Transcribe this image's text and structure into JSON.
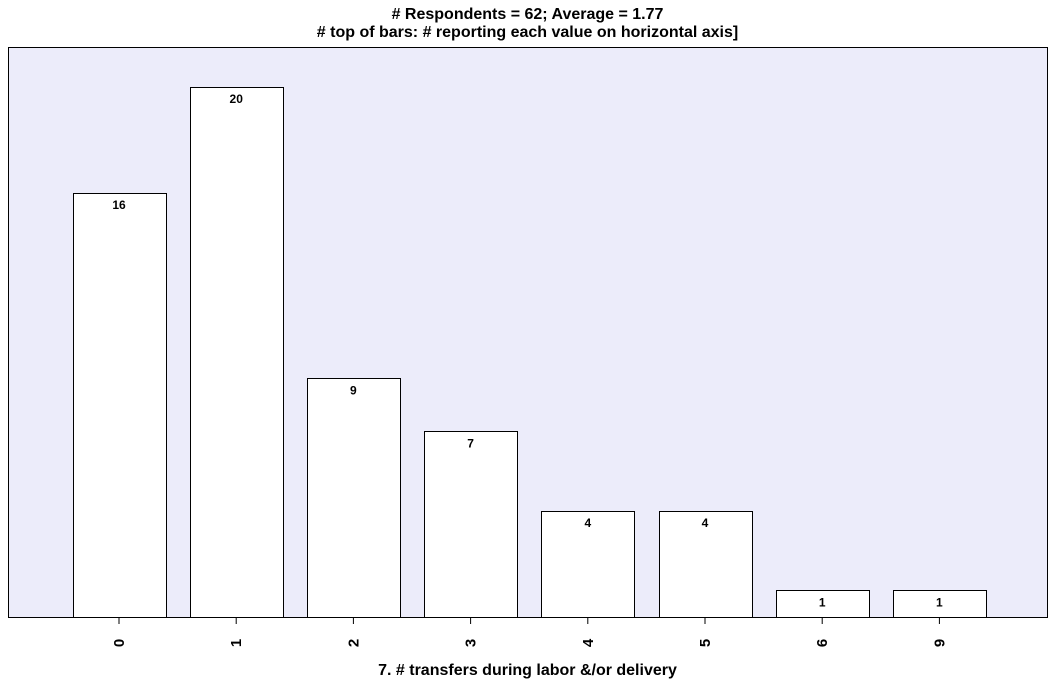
{
  "chart_data": {
    "type": "bar",
    "title": "# Respondents = 62; Average = 1.77",
    "subtitle": "# top of bars: # reporting each value on horizontal axis]",
    "xlabel": "7. # transfers during labor &/or delivery",
    "ylabel": "",
    "categories": [
      "0",
      "1",
      "2",
      "3",
      "4",
      "5",
      "6",
      "9"
    ],
    "values": [
      16,
      20,
      9,
      7,
      4,
      4,
      1,
      1
    ],
    "ylim": [
      0,
      21.5
    ],
    "grid": false,
    "colors": {
      "plot_background": "#ececfa",
      "bar_fill": "#ffffff",
      "bar_stroke": "#000000"
    }
  }
}
